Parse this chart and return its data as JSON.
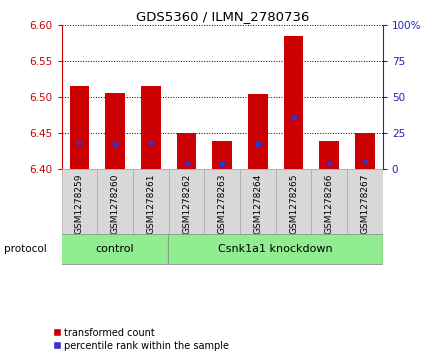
{
  "title": "GDS5360 / ILMN_2780736",
  "samples": [
    "GSM1278259",
    "GSM1278260",
    "GSM1278261",
    "GSM1278262",
    "GSM1278263",
    "GSM1278264",
    "GSM1278265",
    "GSM1278266",
    "GSM1278267"
  ],
  "transformed_count": [
    6.515,
    6.505,
    6.515,
    6.45,
    6.438,
    6.504,
    6.585,
    6.438,
    6.45
  ],
  "bar_bottom": [
    6.4,
    6.4,
    6.4,
    6.4,
    6.4,
    6.4,
    6.4,
    6.4,
    6.4
  ],
  "percentile_rank": [
    18,
    17,
    18,
    4,
    3,
    17,
    36,
    4,
    5
  ],
  "ylim_left": [
    6.4,
    6.6
  ],
  "ylim_right": [
    0,
    100
  ],
  "yticks_left": [
    6.4,
    6.45,
    6.5,
    6.55,
    6.6
  ],
  "yticks_right": [
    0,
    25,
    50,
    75,
    100
  ],
  "control_indices": [
    0,
    1,
    2
  ],
  "knockdown_indices": [
    3,
    4,
    5,
    6,
    7,
    8
  ],
  "group_labels": [
    "control",
    "Csnk1a1 knockdown"
  ],
  "group_color": "#90ee90",
  "bar_color": "#cc0000",
  "blue_color": "#3333cc",
  "bar_width": 0.55,
  "left_axis_color": "#cc0000",
  "right_axis_color": "#2222bb",
  "protocol_label": "protocol",
  "cell_bg_color": "#d8d8d8",
  "legend_items": [
    "transformed count",
    "percentile rank within the sample"
  ]
}
